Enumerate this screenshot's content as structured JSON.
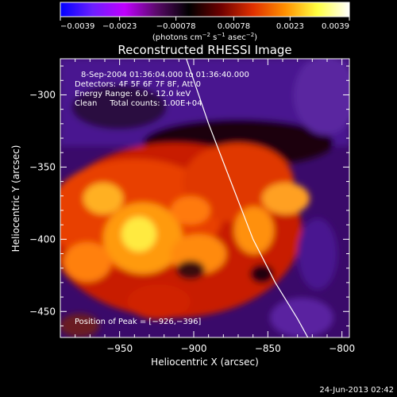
{
  "chart_data": {
    "type": "heatmap",
    "title": "Reconstructed RHESSI Image",
    "xlabel": "Heliocentric X (arcsec)",
    "ylabel": "Heliocentric Y (arcsec)",
    "xlim": [
      -990,
      -795
    ],
    "ylim": [
      -468,
      -275
    ],
    "x_ticks": [
      -950,
      -900,
      -850,
      -800
    ],
    "y_ticks": [
      -300,
      -350,
      -400,
      -450
    ],
    "x_tick_labels": [
      "−950",
      "−900",
      "−850",
      "−800"
    ],
    "y_tick_labels": [
      "−300",
      "−350",
      "−400",
      "−450"
    ],
    "colorbar": {
      "min": -0.0039,
      "max": 0.0039,
      "ticks": [
        -0.0039,
        -0.0023,
        -0.00078,
        0.00078,
        0.0023,
        0.0039
      ],
      "tick_labels": [
        "−0.0039",
        "−0.0023",
        "−0.00078",
        "0.00078",
        "0.0023",
        "0.0039"
      ],
      "units_prefix": "(photons cm",
      "units_exp1": "−2",
      "units_mid": " s",
      "units_exp2": "−1",
      "units_mid2": " asec",
      "units_exp3": "−2",
      "units_suffix": ")",
      "colors": [
        "#0000ff",
        "#6b1fff",
        "#c000ff",
        "#5a0a6a",
        "#000000",
        "#6e0000",
        "#e03000",
        "#ff9000",
        "#ffff40",
        "#ffffff"
      ]
    },
    "info_lines": [
      "8-Sep-2004 01:36:04.000 to 01:36:40.000",
      "Detectors: 4F 5F 6F 7F 8F, Att 0",
      "Energy Range: 6.0 - 12.0 keV",
      "Clean     Total counts: 1.00E+04"
    ],
    "peak_label": "Position of Peak = [−926,−396]",
    "peak": [
      -926,
      -396
    ],
    "limb_curve": [
      [
        -905,
        -275
      ],
      [
        -890,
        -320
      ],
      [
        -875,
        -360
      ],
      [
        -860,
        -400
      ],
      [
        -845,
        -430
      ],
      [
        -830,
        -455
      ],
      [
        -823,
        -468
      ]
    ],
    "value_grid_note": "",
    "value_grid": []
  },
  "footer": {
    "timestamp": "24-Jun-2013 02:42"
  }
}
